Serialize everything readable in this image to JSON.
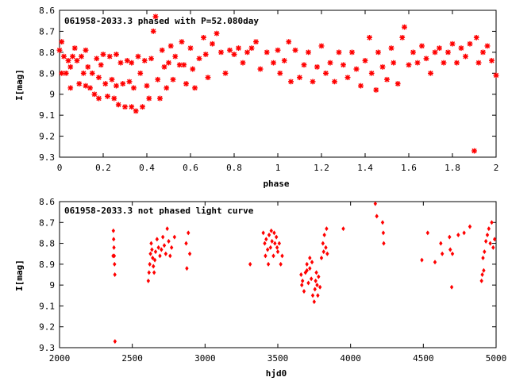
{
  "chart_data": [
    {
      "type": "scatter",
      "title": "061958-2033.3 phased with P=52.080day",
      "xlabel": "phase",
      "ylabel": "I[mag]",
      "xlim": [
        0,
        2
      ],
      "ylim": [
        8.6,
        9.3
      ],
      "y_inverted": true,
      "grid": false,
      "legend": "none",
      "color": "#ff0000",
      "marker": "star",
      "x_ticks": [
        "0",
        "0.2",
        "0.4",
        "0.6",
        "0.8",
        "1",
        "1.2",
        "1.4",
        "1.6",
        "1.8",
        "2"
      ],
      "y_ticks": [
        "8.6",
        "8.7",
        "8.8",
        "8.9",
        "9",
        "9.1",
        "9.2",
        "9.3"
      ],
      "points": [
        [
          0.0,
          8.79
        ],
        [
          0.01,
          8.75
        ],
        [
          0.01,
          8.9
        ],
        [
          0.02,
          8.82
        ],
        [
          0.03,
          8.9
        ],
        [
          0.04,
          8.84
        ],
        [
          0.05,
          8.87
        ],
        [
          0.05,
          8.97
        ],
        [
          0.06,
          8.82
        ],
        [
          0.07,
          8.78
        ],
        [
          0.08,
          8.84
        ],
        [
          0.09,
          8.95
        ],
        [
          0.1,
          8.82
        ],
        [
          0.11,
          8.9
        ],
        [
          0.12,
          8.96
        ],
        [
          0.12,
          8.79
        ],
        [
          0.13,
          8.87
        ],
        [
          0.14,
          8.97
        ],
        [
          0.15,
          8.9
        ],
        [
          0.16,
          9.0
        ],
        [
          0.17,
          8.83
        ],
        [
          0.18,
          8.92
        ],
        [
          0.18,
          9.02
        ],
        [
          0.19,
          8.86
        ],
        [
          0.2,
          8.81
        ],
        [
          0.21,
          8.95
        ],
        [
          0.22,
          9.01
        ],
        [
          0.23,
          8.82
        ],
        [
          0.24,
          8.93
        ],
        [
          0.25,
          9.02
        ],
        [
          0.26,
          8.81
        ],
        [
          0.26,
          8.96
        ],
        [
          0.27,
          9.05
        ],
        [
          0.28,
          8.85
        ],
        [
          0.29,
          8.95
        ],
        [
          0.3,
          9.06
        ],
        [
          0.31,
          8.84
        ],
        [
          0.32,
          8.94
        ],
        [
          0.33,
          9.06
        ],
        [
          0.33,
          8.85
        ],
        [
          0.34,
          8.97
        ],
        [
          0.35,
          9.08
        ],
        [
          0.36,
          8.82
        ],
        [
          0.37,
          8.9
        ],
        [
          0.38,
          9.06
        ],
        [
          0.39,
          8.84
        ],
        [
          0.4,
          8.96
        ],
        [
          0.41,
          9.02
        ],
        [
          0.42,
          8.83
        ],
        [
          0.43,
          8.7
        ],
        [
          0.44,
          8.63
        ],
        [
          0.45,
          8.93
        ],
        [
          0.46,
          9.02
        ],
        [
          0.47,
          8.79
        ],
        [
          0.48,
          8.87
        ],
        [
          0.49,
          8.97
        ],
        [
          0.5,
          8.85
        ],
        [
          0.51,
          8.77
        ],
        [
          0.52,
          8.93
        ],
        [
          0.53,
          8.82
        ],
        [
          0.55,
          8.86
        ],
        [
          0.56,
          8.75
        ],
        [
          0.57,
          8.86
        ],
        [
          0.58,
          8.95
        ],
        [
          0.6,
          8.78
        ],
        [
          0.61,
          8.88
        ],
        [
          0.62,
          8.97
        ],
        [
          0.64,
          8.83
        ],
        [
          0.66,
          8.73
        ],
        [
          0.67,
          8.81
        ],
        [
          0.68,
          8.92
        ],
        [
          0.7,
          8.76
        ],
        [
          0.72,
          8.71
        ],
        [
          0.74,
          8.8
        ],
        [
          0.76,
          8.9
        ],
        [
          0.78,
          8.79
        ],
        [
          0.8,
          8.81
        ],
        [
          0.82,
          8.78
        ],
        [
          0.84,
          8.85
        ],
        [
          0.86,
          8.8
        ],
        [
          0.88,
          8.78
        ],
        [
          0.9,
          8.75
        ],
        [
          0.92,
          8.88
        ],
        [
          0.95,
          8.8
        ],
        [
          0.98,
          8.85
        ],
        [
          1.0,
          8.79
        ],
        [
          1.01,
          8.9
        ],
        [
          1.03,
          8.84
        ],
        [
          1.05,
          8.75
        ],
        [
          1.06,
          8.94
        ],
        [
          1.08,
          8.79
        ],
        [
          1.1,
          8.92
        ],
        [
          1.12,
          8.86
        ],
        [
          1.14,
          8.8
        ],
        [
          1.16,
          8.94
        ],
        [
          1.18,
          8.87
        ],
        [
          1.2,
          8.77
        ],
        [
          1.22,
          8.9
        ],
        [
          1.24,
          8.85
        ],
        [
          1.26,
          8.94
        ],
        [
          1.28,
          8.8
        ],
        [
          1.3,
          8.86
        ],
        [
          1.32,
          8.92
        ],
        [
          1.34,
          8.8
        ],
        [
          1.36,
          8.88
        ],
        [
          1.38,
          8.96
        ],
        [
          1.4,
          8.84
        ],
        [
          1.42,
          8.73
        ],
        [
          1.43,
          8.9
        ],
        [
          1.45,
          8.98
        ],
        [
          1.46,
          8.8
        ],
        [
          1.48,
          8.87
        ],
        [
          1.5,
          8.93
        ],
        [
          1.52,
          8.78
        ],
        [
          1.53,
          8.85
        ],
        [
          1.55,
          8.95
        ],
        [
          1.57,
          8.73
        ],
        [
          1.58,
          8.68
        ],
        [
          1.6,
          8.86
        ],
        [
          1.62,
          8.8
        ],
        [
          1.64,
          8.85
        ],
        [
          1.66,
          8.77
        ],
        [
          1.68,
          8.83
        ],
        [
          1.7,
          8.9
        ],
        [
          1.72,
          8.8
        ],
        [
          1.74,
          8.78
        ],
        [
          1.76,
          8.85
        ],
        [
          1.78,
          8.8
        ],
        [
          1.8,
          8.76
        ],
        [
          1.82,
          8.85
        ],
        [
          1.84,
          8.78
        ],
        [
          1.86,
          8.82
        ],
        [
          1.88,
          8.76
        ],
        [
          1.9,
          9.27
        ],
        [
          1.91,
          8.73
        ],
        [
          1.92,
          8.85
        ],
        [
          1.94,
          8.8
        ],
        [
          1.96,
          8.77
        ],
        [
          1.98,
          8.84
        ],
        [
          2.0,
          8.91
        ]
      ]
    },
    {
      "type": "scatter",
      "title": "061958-2033.3 not phased light curve",
      "xlabel": "hjd0",
      "ylabel": "I[mag]",
      "xlim": [
        2000,
        5000
      ],
      "ylim": [
        8.6,
        9.3
      ],
      "y_inverted": true,
      "grid": false,
      "legend": "none",
      "color": "#ff0000",
      "marker": "diamond",
      "x_ticks": [
        "2000",
        "2500",
        "3000",
        "3500",
        "4000",
        "4500",
        "5000"
      ],
      "y_ticks": [
        "8.6",
        "8.7",
        "8.8",
        "8.9",
        "9",
        "9.1",
        "9.2",
        "9.3"
      ],
      "points": [
        [
          2370,
          8.74
        ],
        [
          2372,
          8.78
        ],
        [
          2374,
          8.82
        ],
        [
          2376,
          8.86
        ],
        [
          2378,
          8.9
        ],
        [
          2380,
          8.95
        ],
        [
          2381,
          9.27
        ],
        [
          2368,
          8.86
        ],
        [
          2610,
          8.98
        ],
        [
          2615,
          8.94
        ],
        [
          2620,
          8.9
        ],
        [
          2625,
          8.85
        ],
        [
          2630,
          8.8
        ],
        [
          2635,
          8.83
        ],
        [
          2640,
          8.87
        ],
        [
          2645,
          8.91
        ],
        [
          2650,
          8.94
        ],
        [
          2655,
          8.88
        ],
        [
          2660,
          8.84
        ],
        [
          2670,
          8.78
        ],
        [
          2680,
          8.82
        ],
        [
          2690,
          8.86
        ],
        [
          2700,
          8.83
        ],
        [
          2710,
          8.77
        ],
        [
          2720,
          8.81
        ],
        [
          2730,
          8.85
        ],
        [
          2740,
          8.73
        ],
        [
          2750,
          8.79
        ],
        [
          2760,
          8.86
        ],
        [
          2770,
          8.82
        ],
        [
          2790,
          8.77
        ],
        [
          2870,
          8.8
        ],
        [
          2875,
          8.92
        ],
        [
          2885,
          8.75
        ],
        [
          2895,
          8.85
        ],
        [
          3310,
          8.9
        ],
        [
          3400,
          8.75
        ],
        [
          3410,
          8.8
        ],
        [
          3420,
          8.78
        ],
        [
          3430,
          8.83
        ],
        [
          3440,
          8.76
        ],
        [
          3450,
          8.82
        ],
        [
          3460,
          8.79
        ],
        [
          3470,
          8.86
        ],
        [
          3480,
          8.8
        ],
        [
          3490,
          8.77
        ],
        [
          3500,
          8.84
        ],
        [
          3510,
          8.8
        ],
        [
          3520,
          8.9
        ],
        [
          3530,
          8.86
        ],
        [
          3415,
          8.86
        ],
        [
          3435,
          8.9
        ],
        [
          3455,
          8.74
        ],
        [
          3475,
          8.75
        ],
        [
          3495,
          8.82
        ],
        [
          3660,
          8.95
        ],
        [
          3665,
          9.0
        ],
        [
          3670,
          8.98
        ],
        [
          3680,
          9.03
        ],
        [
          3690,
          8.94
        ],
        [
          3700,
          8.9
        ],
        [
          3710,
          8.99
        ],
        [
          3720,
          8.92
        ],
        [
          3730,
          8.97
        ],
        [
          3740,
          9.05
        ],
        [
          3750,
          9.08
        ],
        [
          3755,
          9.02
        ],
        [
          3760,
          8.98
        ],
        [
          3765,
          8.94
        ],
        [
          3770,
          9.0
        ],
        [
          3775,
          9.05
        ],
        [
          3780,
          8.96
        ],
        [
          3790,
          9.01
        ],
        [
          3800,
          8.87
        ],
        [
          3810,
          8.8
        ],
        [
          3815,
          8.84
        ],
        [
          3820,
          8.76
        ],
        [
          3830,
          8.82
        ],
        [
          3840,
          8.85
        ],
        [
          3835,
          8.73
        ],
        [
          3700,
          8.93
        ],
        [
          3720,
          8.87
        ],
        [
          3735,
          8.89
        ],
        [
          3950,
          8.73
        ],
        [
          4170,
          8.61
        ],
        [
          4180,
          8.67
        ],
        [
          4220,
          8.7
        ],
        [
          4225,
          8.75
        ],
        [
          4228,
          8.8
        ],
        [
          4490,
          8.88
        ],
        [
          4530,
          8.75
        ],
        [
          4580,
          8.89
        ],
        [
          4620,
          8.8
        ],
        [
          4630,
          8.85
        ],
        [
          4680,
          8.77
        ],
        [
          4685,
          8.83
        ],
        [
          4700,
          8.85
        ],
        [
          4695,
          9.01
        ],
        [
          4740,
          8.76
        ],
        [
          4780,
          8.75
        ],
        [
          4820,
          8.72
        ],
        [
          4900,
          8.98
        ],
        [
          4905,
          8.95
        ],
        [
          4910,
          8.87
        ],
        [
          4915,
          8.93
        ],
        [
          4920,
          8.84
        ],
        [
          4930,
          8.79
        ],
        [
          4940,
          8.76
        ],
        [
          4950,
          8.73
        ],
        [
          4960,
          8.8
        ],
        [
          4970,
          8.7
        ],
        [
          4980,
          8.82
        ],
        [
          4990,
          8.78
        ]
      ]
    }
  ]
}
